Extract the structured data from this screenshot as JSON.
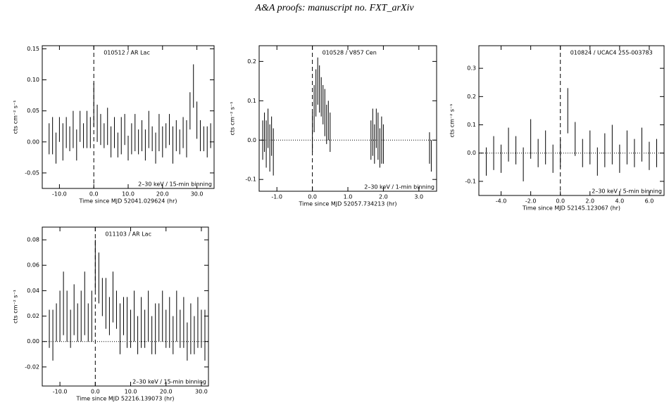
{
  "header": {
    "text": "A&A proofs: manuscript no. FXT_arXiv"
  },
  "chart_data": [
    {
      "type": "errorbar",
      "title": "010512 / AR Lac",
      "annotation": "2–30 keV / 15-min binning",
      "xlabel": "Time since MJD 52041.029624 (hr)",
      "ylabel": "cts cm⁻² s⁻¹",
      "color": "#000000",
      "xlim": [
        -15,
        35
      ],
      "ylim": [
        -0.075,
        0.155
      ],
      "xticks": [
        {
          "value": -10,
          "label": "-10.0"
        },
        {
          "value": 0,
          "label": "0.0"
        },
        {
          "value": 10,
          "label": "10.0"
        },
        {
          "value": 20,
          "label": "20.0"
        },
        {
          "value": 30,
          "label": "30.0"
        }
      ],
      "yticks": [
        -0.05,
        {
          "value": 0,
          "label": "0.00"
        },
        0.05,
        {
          "value": 0.1,
          "label": "0.10"
        },
        0.15
      ],
      "vlines": [
        0
      ],
      "hlines": [],
      "x": [
        -13,
        -12,
        -11,
        -10,
        -9,
        -8,
        -7,
        -6,
        -5,
        -4,
        -3,
        -2,
        -1,
        0,
        1,
        2,
        3,
        4,
        5,
        6,
        7,
        8,
        9,
        10,
        11,
        12,
        13,
        14,
        15,
        16,
        17,
        18,
        19,
        20,
        21,
        22,
        23,
        24,
        25,
        26,
        27,
        28,
        29,
        30,
        31,
        32,
        33,
        34
      ],
      "values": [
        0.005,
        0.01,
        -0.01,
        0.02,
        0.0,
        0.015,
        0.005,
        0.02,
        -0.005,
        0.025,
        0.01,
        0.02,
        0.015,
        0.06,
        0.03,
        0.02,
        0.01,
        0.025,
        0.0,
        0.015,
        -0.005,
        0.01,
        0.02,
        -0.01,
        0.005,
        0.015,
        0.0,
        0.01,
        -0.005,
        0.02,
        0.005,
        -0.01,
        0.015,
        0.0,
        0.01,
        0.02,
        -0.005,
        0.01,
        0.0,
        0.015,
        0.005,
        0.05,
        0.09,
        0.035,
        0.01,
        0.005,
        0.0,
        0.01
      ],
      "errors": [
        0.025,
        0.03,
        0.025,
        0.02,
        0.03,
        0.025,
        0.02,
        0.03,
        0.025,
        0.025,
        0.02,
        0.03,
        0.025,
        0.035,
        0.03,
        0.025,
        0.02,
        0.03,
        0.025,
        0.025,
        0.02,
        0.03,
        0.025,
        0.02,
        0.025,
        0.03,
        0.02,
        0.025,
        0.025,
        0.03,
        0.02,
        0.025,
        0.03,
        0.025,
        0.02,
        0.025,
        0.03,
        0.025,
        0.02,
        0.025,
        0.03,
        0.03,
        0.035,
        0.03,
        0.025,
        0.02,
        0.025,
        0.02
      ]
    },
    {
      "type": "errorbar",
      "title": "010528 / V857 Cen",
      "annotation": "2–30 keV / 1-min binning",
      "xlabel": "Time since MJD 52057.734213 (hr)",
      "ylabel": "cts cm⁻² s⁻¹",
      "color": "#000000",
      "xlim": [
        -1.5,
        3.5
      ],
      "ylim": [
        -0.13,
        0.24
      ],
      "xticks": [
        {
          "value": -1,
          "label": "-1.0"
        },
        {
          "value": 0,
          "label": "0.0"
        },
        {
          "value": 1,
          "label": "1.0"
        },
        {
          "value": 2,
          "label": "2.0"
        },
        {
          "value": 3,
          "label": "3.0"
        }
      ],
      "yticks": [
        -0.1,
        {
          "value": 0,
          "label": "0.0"
        },
        0.1,
        0.2
      ],
      "vlines": [
        0
      ],
      "hlines": [
        0
      ],
      "x": [
        -1.4,
        -1.35,
        -1.3,
        -1.25,
        -1.2,
        -1.15,
        -1.1,
        0.0,
        0.05,
        0.1,
        0.15,
        0.2,
        0.25,
        0.3,
        0.35,
        0.4,
        0.45,
        0.5,
        1.65,
        1.7,
        1.75,
        1.8,
        1.85,
        1.9,
        1.95,
        2.0,
        3.3,
        3.35
      ],
      "values": [
        0.0,
        0.02,
        -0.01,
        0.03,
        -0.02,
        0.01,
        -0.03,
        0.02,
        0.08,
        0.12,
        0.15,
        0.13,
        0.11,
        0.09,
        0.07,
        0.04,
        0.05,
        0.02,
        0.0,
        0.02,
        -0.01,
        0.03,
        0.01,
        -0.02,
        0.0,
        -0.01,
        -0.02,
        -0.04
      ],
      "errors": [
        0.05,
        0.05,
        0.06,
        0.05,
        0.06,
        0.05,
        0.06,
        0.05,
        0.06,
        0.06,
        0.06,
        0.06,
        0.05,
        0.05,
        0.06,
        0.05,
        0.05,
        0.05,
        0.05,
        0.06,
        0.05,
        0.05,
        0.06,
        0.05,
        0.06,
        0.05,
        0.04,
        0.04
      ]
    },
    {
      "type": "errorbar",
      "title": "010824 / UCAC4 255-003783",
      "annotation": "2–30 keV / 5-min binning",
      "xlabel": "Time since MJD 52145.123067 (hr)",
      "ylabel": "cts cm⁻² s⁻¹",
      "color": "#000000",
      "xlim": [
        -5.5,
        7
      ],
      "ylim": [
        -0.15,
        0.38
      ],
      "xticks": [
        {
          "value": -4,
          "label": "-4.0"
        },
        {
          "value": -2,
          "label": "-2.0"
        },
        {
          "value": 0,
          "label": "0.0"
        },
        {
          "value": 2,
          "label": "2.0"
        },
        {
          "value": 4,
          "label": "4.0"
        },
        {
          "value": 6,
          "label": "6.0"
        }
      ],
      "yticks": [
        -0.1,
        {
          "value": 0,
          "label": "0.0"
        },
        0.1,
        0.2,
        0.3
      ],
      "vlines": [
        0
      ],
      "hlines": [
        0
      ],
      "x": [
        -5,
        -4.5,
        -4,
        -3.5,
        -3,
        -2.5,
        -2,
        -1.5,
        -1,
        -0.5,
        0,
        0.5,
        1,
        1.5,
        2,
        2.5,
        3,
        3.5,
        4,
        4.5,
        5,
        5.5,
        6,
        6.5
      ],
      "values": [
        -0.03,
        0.0,
        -0.02,
        0.03,
        0.01,
        -0.04,
        0.05,
        0.0,
        0.02,
        -0.02,
        0.0,
        0.15,
        0.05,
        0.0,
        0.02,
        -0.03,
        0.01,
        0.03,
        -0.02,
        0.02,
        0.0,
        0.03,
        -0.01,
        0.0
      ],
      "errors": [
        0.05,
        0.06,
        0.05,
        0.06,
        0.05,
        0.06,
        0.07,
        0.05,
        0.06,
        0.05,
        0.05,
        0.08,
        0.06,
        0.05,
        0.06,
        0.05,
        0.06,
        0.07,
        0.05,
        0.06,
        0.05,
        0.06,
        0.05,
        0.05
      ]
    },
    {
      "type": "errorbar",
      "title": "011103 / AR Lac",
      "annotation": "2–30 keV / 15-min binning",
      "xlabel": "Time since MJD 52216.139073 (hr)",
      "ylabel": "cts cm⁻² s⁻¹",
      "color": "#000000",
      "xlim": [
        -15,
        32
      ],
      "ylim": [
        -0.035,
        0.09
      ],
      "xticks": [
        {
          "value": -10,
          "label": "-10.0"
        },
        {
          "value": 0,
          "label": "0.0"
        },
        {
          "value": 10,
          "label": "10.0"
        },
        {
          "value": 20,
          "label": "20.0"
        },
        {
          "value": 30,
          "label": "30.0"
        }
      ],
      "yticks": [
        -0.02,
        {
          "value": 0,
          "label": "0.00"
        },
        0.02,
        0.04,
        0.06,
        0.08
      ],
      "vlines": [
        0
      ],
      "hlines": [
        0
      ],
      "x": [
        -13,
        -12,
        -11,
        -10,
        -9,
        -8,
        -7,
        -6,
        -5,
        -4,
        -3,
        -2,
        -1,
        0,
        1,
        2,
        3,
        4,
        5,
        6,
        7,
        8,
        9,
        10,
        11,
        12,
        13,
        14,
        15,
        16,
        17,
        18,
        19,
        20,
        21,
        22,
        23,
        24,
        25,
        26,
        27,
        28,
        29,
        30,
        31
      ],
      "values": [
        0.01,
        0.005,
        0.015,
        0.02,
        0.03,
        0.02,
        0.01,
        0.025,
        0.015,
        0.02,
        0.03,
        0.015,
        0.02,
        0.06,
        0.05,
        0.035,
        0.03,
        0.02,
        0.035,
        0.025,
        0.01,
        0.02,
        0.015,
        0.01,
        0.02,
        0.005,
        0.015,
        0.01,
        0.02,
        0.005,
        0.01,
        0.015,
        0.02,
        0.01,
        0.015,
        0.005,
        0.02,
        0.01,
        0.015,
        0.0,
        0.01,
        0.005,
        0.015,
        0.01,
        0.005
      ],
      "errors": [
        0.015,
        0.02,
        0.015,
        0.02,
        0.025,
        0.02,
        0.015,
        0.02,
        0.015,
        0.02,
        0.025,
        0.015,
        0.02,
        0.02,
        0.02,
        0.015,
        0.02,
        0.015,
        0.02,
        0.015,
        0.02,
        0.015,
        0.02,
        0.015,
        0.02,
        0.015,
        0.02,
        0.015,
        0.02,
        0.015,
        0.02,
        0.015,
        0.02,
        0.015,
        0.02,
        0.015,
        0.02,
        0.015,
        0.02,
        0.015,
        0.02,
        0.015,
        0.02,
        0.015,
        0.02
      ]
    }
  ]
}
